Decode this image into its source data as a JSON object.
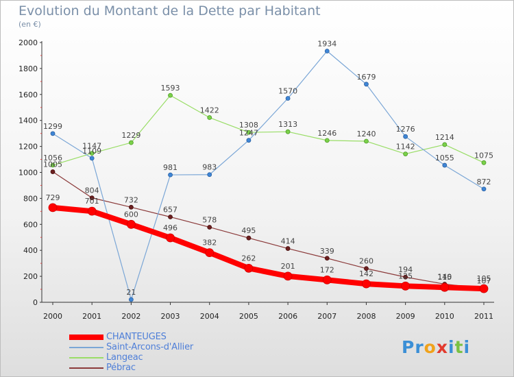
{
  "title": "Evolution du Montant de la Dette par Habitant",
  "subtitle": "(en €)",
  "logo_text": "Proxiti",
  "chart_data": {
    "type": "line",
    "title": "Evolution du Montant de la Dette par Habitant",
    "subtitle": "(en €)",
    "xlabel": "",
    "ylabel": "",
    "x": [
      "2000",
      "2001",
      "2002",
      "2003",
      "2004",
      "2005",
      "2006",
      "2007",
      "2008",
      "2009",
      "2010",
      "2011"
    ],
    "ylim": [
      0,
      2000
    ],
    "yticks": [
      "0",
      "200",
      "400",
      "600",
      "800",
      "1000",
      "1200",
      "1400",
      "1600",
      "1800",
      "2000"
    ],
    "grid": false,
    "legend_position": "bottom-left",
    "series": [
      {
        "name": "CHANTEUGES",
        "color": "#ff0000",
        "values": [
          729,
          701,
          600,
          496,
          382,
          262,
          201,
          172,
          142,
          125,
          115,
          105
        ]
      },
      {
        "name": "Saint-Arcons-d'Allier",
        "color": "#7aa6d6",
        "values": [
          1299,
          1109,
          21,
          981,
          983,
          1247,
          1570,
          1934,
          1679,
          1276,
          1055,
          872
        ]
      },
      {
        "name": "Langeac",
        "color": "#99dd66",
        "values": [
          1056,
          1147,
          1229,
          1593,
          1422,
          1308,
          1313,
          1246,
          1240,
          1142,
          1214,
          1075
        ]
      },
      {
        "name": "Pébrac",
        "color": "#8b3a3a",
        "values": [
          1005,
          804,
          732,
          657,
          578,
          495,
          414,
          339,
          260,
          194,
          140,
          107
        ]
      }
    ]
  }
}
